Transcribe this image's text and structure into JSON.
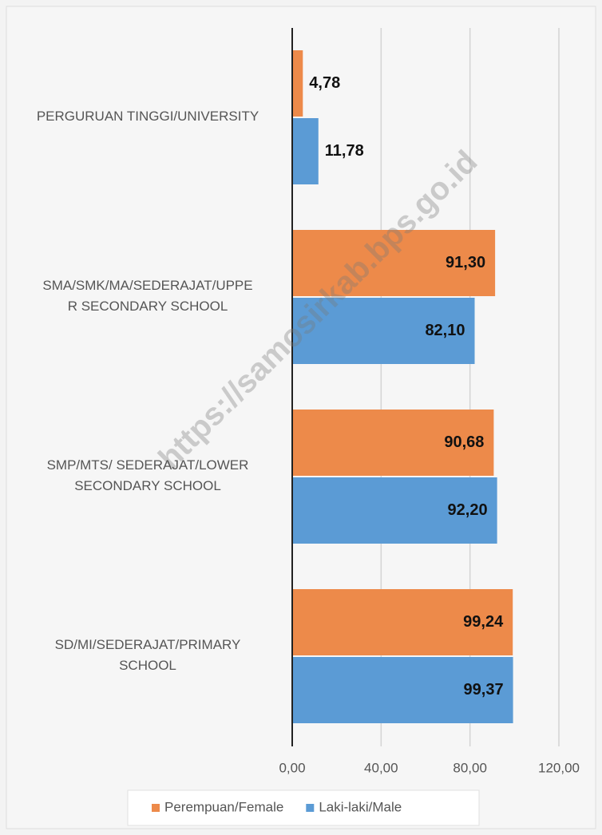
{
  "chart_data": {
    "type": "barh",
    "categories": [
      "PERGURUAN TINGGI/UNIVERSITY",
      "SMA/SMK/MA/SEDERAJAT/UPPE\nR SECONDARY SCHOOL",
      "SMP/MTS/ SEDERAJAT/LOWER\nSECONDARY SCHOOL",
      "SD/MI/SEDERAJAT/PRIMARY\nSCHOOL"
    ],
    "series": [
      {
        "name": "Perempuan/Female",
        "color": "#ed8a4a",
        "values": [
          4.78,
          91.3,
          90.68,
          99.24
        ],
        "value_labels": [
          "4,78",
          "91,30",
          "90,68",
          "99,24"
        ]
      },
      {
        "name": "Laki-laki/Male",
        "color": "#5b9bd5",
        "values": [
          11.78,
          82.1,
          92.2,
          99.37
        ],
        "value_labels": [
          "11,78",
          "82,10",
          "92,20",
          "99,37"
        ]
      }
    ],
    "xlim": [
      0,
      120
    ],
    "xticks": [
      {
        "value": 0,
        "label": "0,00"
      },
      {
        "value": 40,
        "label": "40,00"
      },
      {
        "value": 80,
        "label": "80,00"
      },
      {
        "value": 120,
        "label": "120,00"
      }
    ],
    "grid": true,
    "legend": "bottom",
    "watermark": "https://samosirkab.bps.go.id"
  }
}
